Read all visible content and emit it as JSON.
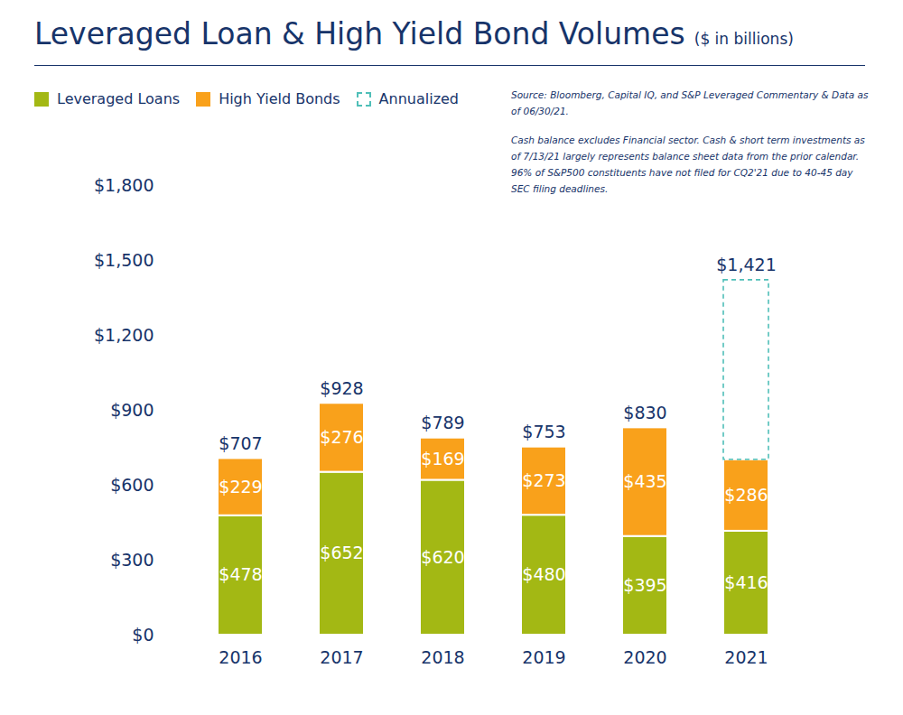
{
  "chart_data": {
    "type": "bar",
    "title": "Leveraged Loan & High Yield Bond Volumes",
    "subtitle": "($ in billions)",
    "source": "Source: Bloomberg, Capital IQ, and S&P Leveraged Commentary & Data as of 06/30/21.",
    "note": "Cash balance excludes Financial sector. Cash & short term investments as of 7/13/21 largely represents balance sheet data from the prior calendar. 96% of S&P500 constituents have not filed for CQ2'21 due to 40-45 day SEC filing deadlines.",
    "categories": [
      "2016",
      "2017",
      "2018",
      "2019",
      "2020",
      "2021"
    ],
    "stacked": true,
    "data_labels": true,
    "grid": false,
    "legend": "top-left",
    "series": [
      {
        "name": "Leveraged Loans",
        "color": "#a3b814",
        "values": [
          478,
          652,
          620,
          480,
          395,
          416
        ],
        "value_labels": [
          "$478",
          "$652",
          "$620",
          "$480",
          "$395",
          "$416"
        ]
      },
      {
        "name": "High Yield Bonds",
        "color": "#f9a11b",
        "values": [
          229,
          276,
          169,
          273,
          435,
          286
        ],
        "value_labels": [
          "$229",
          "$276",
          "$169",
          "$273",
          "$435",
          "$286"
        ]
      },
      {
        "name": "Annualized",
        "color": "#4fbfb8",
        "line_style": "dashed",
        "values": [
          null,
          null,
          null,
          null,
          null,
          719
        ]
      }
    ],
    "totals": {
      "values": [
        707,
        928,
        789,
        753,
        830,
        1421
      ],
      "value_labels": [
        "$707",
        "$928",
        "$789",
        "$753",
        "$830",
        "$1,421"
      ]
    },
    "ylim": [
      0,
      1800
    ],
    "yticks": [
      {
        "value": 0,
        "label": "$0"
      },
      {
        "value": 300,
        "label": "$300"
      },
      {
        "value": 600,
        "label": "$600"
      },
      {
        "value": 900,
        "label": "$900"
      },
      {
        "value": 1200,
        "label": "$1,200"
      },
      {
        "value": 1500,
        "label": "$1,500"
      },
      {
        "value": 1800,
        "label": "$1,800"
      }
    ]
  }
}
